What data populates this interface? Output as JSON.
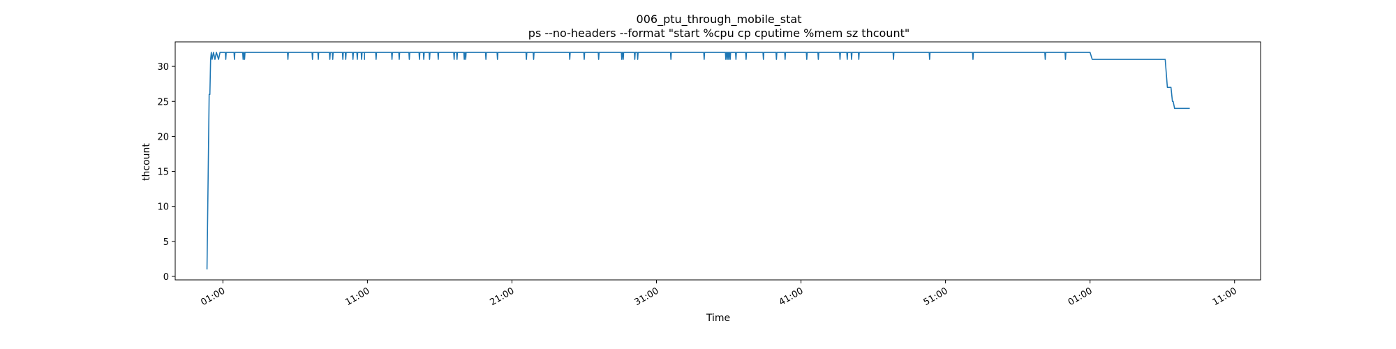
{
  "chart_data": {
    "type": "line",
    "title": "006_ptu_through_mobile_stat",
    "subtitle": "ps --no-headers --format \"start %cpu cp cputime %mem sz thcount\"",
    "xlabel": "Time",
    "ylabel": "thcount",
    "x_tick_labels": [
      "01:00",
      "11:00",
      "21:00",
      "31:00",
      "41:00",
      "51:00",
      "01:00",
      "11:00"
    ],
    "x_ticks_minutes": [
      0,
      10,
      20,
      30,
      40,
      50,
      60,
      70
    ],
    "xlim_minutes": [
      -3.3,
      71.8
    ],
    "y_ticks": [
      0,
      5,
      10,
      15,
      20,
      25,
      30
    ],
    "ylim": [
      -0.5,
      33.5
    ],
    "grid": false,
    "series": [
      {
        "color": "#1f77b4",
        "x_minutes": [
          -1.1,
          -0.95,
          -0.9,
          -0.85,
          -0.8,
          -0.75,
          -0.65,
          -0.55,
          -0.45,
          -0.3,
          -0.2,
          0.0,
          9.8,
          9.8,
          9.8,
          9.8,
          60.0,
          60.15,
          65.2,
          65.35,
          65.6,
          65.7,
          65.75,
          65.85,
          66.0,
          66.3,
          66.9
        ],
        "thcount": [
          1,
          26,
          26,
          31,
          32,
          31,
          32,
          31,
          32,
          31,
          32,
          32,
          32,
          31,
          32,
          32,
          32,
          31,
          31,
          27,
          27,
          25,
          25,
          24,
          24,
          24,
          24
        ],
        "dips_to_31_at_minutes": [
          -0.8,
          -0.55,
          -0.3,
          0.2,
          0.8,
          1.4,
          1.5,
          4.5,
          6.2,
          6.6,
          7.4,
          7.6,
          8.3,
          8.5,
          9.0,
          9.3,
          9.6,
          10.6,
          11.7,
          12.2,
          12.9,
          13.6,
          13.9,
          14.3,
          14.9,
          16.0,
          16.2,
          16.7,
          16.8,
          18.2,
          19.0,
          21.0,
          21.5,
          24.0,
          25.0,
          26.0,
          27.6,
          27.7,
          28.5,
          28.7,
          31.0,
          33.3,
          34.8,
          34.9,
          35.0,
          35.1,
          35.5,
          36.2,
          37.4,
          38.3,
          38.9,
          40.4,
          41.2,
          42.7,
          43.2,
          43.5,
          44.0,
          46.4,
          48.9,
          51.9,
          56.9,
          58.3
        ]
      }
    ]
  }
}
